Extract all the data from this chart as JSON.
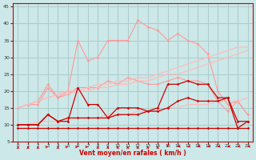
{
  "x": [
    0,
    1,
    2,
    3,
    4,
    5,
    6,
    7,
    8,
    9,
    10,
    11,
    12,
    13,
    14,
    15,
    16,
    17,
    18,
    19,
    20,
    21,
    22,
    23
  ],
  "line_flat": [
    9,
    9,
    9,
    9,
    9,
    9,
    9,
    9,
    9,
    9,
    9,
    9,
    9,
    9,
    9,
    9,
    9,
    9,
    9,
    9,
    9,
    9,
    9,
    9
  ],
  "line_trend1": [
    10,
    10,
    11,
    11,
    11,
    12,
    12,
    12,
    12,
    13,
    13,
    13,
    14,
    14,
    14,
    15,
    15,
    16,
    16,
    16,
    17,
    17,
    17,
    18
  ],
  "line_trend2": [
    15,
    16,
    17,
    18,
    19,
    19,
    20,
    20,
    21,
    21,
    22,
    22,
    23,
    23,
    24,
    25,
    25,
    26,
    27,
    28,
    29,
    30,
    31,
    32
  ],
  "line_trend3": [
    15,
    16,
    17,
    18,
    19,
    20,
    20,
    21,
    22,
    22,
    23,
    23,
    24,
    24,
    25,
    26,
    27,
    28,
    29,
    30,
    31,
    32,
    33,
    33
  ],
  "line_dark1": [
    10,
    10,
    10,
    13,
    11,
    11,
    21,
    16,
    16,
    12,
    15,
    15,
    15,
    14,
    15,
    22,
    22,
    23,
    22,
    22,
    18,
    18,
    9,
    11
  ],
  "line_dark2": [
    10,
    10,
    10,
    13,
    11,
    12,
    12,
    12,
    12,
    12,
    13,
    13,
    13,
    14,
    14,
    15,
    17,
    18,
    17,
    17,
    17,
    18,
    11,
    11
  ],
  "line_pink_volatile": [
    15,
    16,
    17,
    22,
    18,
    20,
    35,
    29,
    30,
    35,
    35,
    35,
    41,
    39,
    38,
    35,
    37,
    35,
    34,
    31,
    20,
    16,
    17,
    13
  ],
  "line_pink_med": [
    15,
    16,
    16,
    21,
    18,
    19,
    21,
    21,
    21,
    23,
    22,
    24,
    23,
    22,
    22,
    23,
    24,
    23,
    23,
    22,
    17,
    14,
    17,
    13
  ],
  "arrow_dirs": [
    0,
    0,
    0,
    45,
    0,
    45,
    45,
    45,
    0,
    0,
    0,
    0,
    0,
    0,
    0,
    180,
    225,
    225,
    225,
    225,
    225,
    225,
    225,
    225
  ],
  "ylim": [
    5,
    46
  ],
  "xlim": [
    -0.5,
    23.5
  ],
  "yticks": [
    5,
    10,
    15,
    20,
    25,
    30,
    35,
    40,
    45
  ],
  "xticks": [
    0,
    1,
    2,
    3,
    4,
    5,
    6,
    7,
    8,
    9,
    10,
    11,
    12,
    13,
    14,
    15,
    16,
    17,
    18,
    19,
    20,
    21,
    22,
    23
  ],
  "xlabel": "Vent moyen/en rafales ( km/h )",
  "bg_color": "#cce8e8",
  "grid_color": "#aacccc",
  "dark_red": "#cc0000",
  "pink_red": "#ff9999",
  "light_pink": "#ffbbbb"
}
